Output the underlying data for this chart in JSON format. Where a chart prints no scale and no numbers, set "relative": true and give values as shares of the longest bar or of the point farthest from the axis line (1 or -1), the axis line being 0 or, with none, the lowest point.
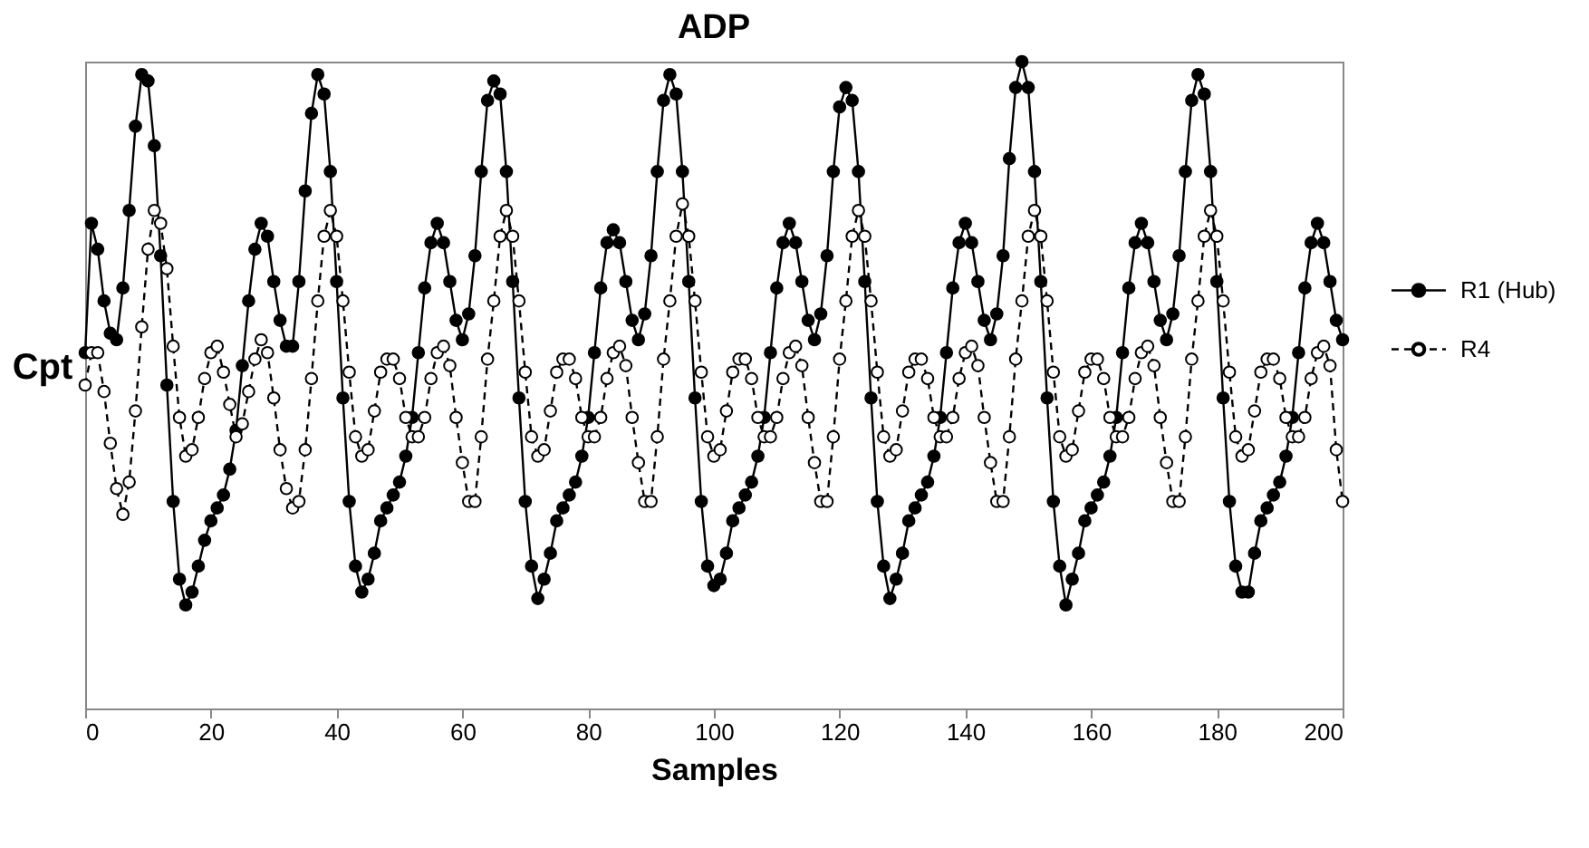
{
  "chart_data": {
    "type": "line",
    "title": "ADP",
    "xlabel": "Samples",
    "ylabel": "Cpt",
    "relative": true,
    "xlim": [
      0,
      200
    ],
    "xticks": [
      0,
      20,
      40,
      60,
      80,
      100,
      120,
      140,
      160,
      180,
      200
    ],
    "grid": false,
    "legend": "right",
    "marker": "circle",
    "x": [
      0,
      1,
      2,
      3,
      4,
      5,
      6,
      7,
      8,
      9,
      10,
      11,
      12,
      13,
      14,
      15,
      16,
      17,
      18,
      19,
      20,
      21,
      22,
      23,
      24,
      25,
      26,
      27,
      28,
      29,
      30,
      31,
      32,
      33,
      34,
      35,
      36,
      37,
      38,
      39,
      40,
      41,
      42,
      43,
      44,
      45,
      46,
      47,
      48,
      49,
      50,
      51,
      52,
      53,
      54,
      55,
      56,
      57,
      58,
      59,
      60,
      61,
      62,
      63,
      64,
      65,
      66,
      67,
      68,
      69,
      70,
      71,
      72,
      73,
      74,
      75,
      76,
      77,
      78,
      79,
      80,
      81,
      82,
      83,
      84,
      85,
      86,
      87,
      88,
      89,
      90,
      91,
      92,
      93,
      94,
      95,
      96,
      97,
      98,
      99,
      100,
      101,
      102,
      103,
      104,
      105,
      106,
      107,
      108,
      109,
      110,
      111,
      112,
      113,
      114,
      115,
      116,
      117,
      118,
      119,
      120,
      121,
      122,
      123,
      124,
      125,
      126,
      127,
      128,
      129,
      130,
      131,
      132,
      133,
      134,
      135,
      136,
      137,
      138,
      139,
      140,
      141,
      142,
      143,
      144,
      145,
      146,
      147,
      148,
      149,
      150,
      151,
      152,
      153,
      154,
      155,
      156,
      157,
      158,
      159,
      160,
      161,
      162,
      163,
      164,
      165,
      166,
      167,
      168,
      169,
      170,
      171,
      172,
      173,
      174,
      175,
      176,
      177,
      178,
      179,
      180,
      181,
      182,
      183,
      184,
      185,
      186,
      187,
      188,
      189,
      190,
      191,
      192,
      193,
      194,
      195,
      196,
      197,
      198,
      199,
      200
    ],
    "series": [
      {
        "name": "R1 (Hub)",
        "color": "#000000",
        "line_style": "solid",
        "values": [
          0.55,
          0.75,
          0.71,
          0.63,
          0.58,
          0.57,
          0.65,
          0.77,
          0.9,
          0.98,
          0.97,
          0.87,
          0.7,
          0.5,
          0.32,
          0.2,
          0.16,
          0.18,
          0.22,
          0.26,
          0.29,
          0.31,
          0.33,
          0.37,
          0.43,
          0.53,
          0.63,
          0.71,
          0.75,
          0.73,
          0.66,
          0.6,
          0.56,
          0.56,
          0.66,
          0.8,
          0.92,
          0.98,
          0.95,
          0.83,
          0.66,
          0.48,
          0.32,
          0.22,
          0.18,
          0.2,
          0.24,
          0.29,
          0.31,
          0.33,
          0.35,
          0.39,
          0.45,
          0.55,
          0.65,
          0.72,
          0.75,
          0.72,
          0.66,
          0.6,
          0.57,
          0.61,
          0.7,
          0.83,
          0.94,
          0.97,
          0.95,
          0.83,
          0.66,
          0.48,
          0.32,
          0.22,
          0.17,
          0.2,
          0.24,
          0.29,
          0.31,
          0.33,
          0.35,
          0.39,
          0.45,
          0.55,
          0.65,
          0.72,
          0.74,
          0.72,
          0.66,
          0.6,
          0.57,
          0.61,
          0.7,
          0.83,
          0.94,
          0.98,
          0.95,
          0.83,
          0.66,
          0.48,
          0.32,
          0.22,
          0.19,
          0.2,
          0.24,
          0.29,
          0.31,
          0.33,
          0.35,
          0.39,
          0.45,
          0.55,
          0.65,
          0.72,
          0.75,
          0.72,
          0.66,
          0.6,
          0.57,
          0.61,
          0.7,
          0.83,
          0.93,
          0.96,
          0.94,
          0.83,
          0.66,
          0.48,
          0.32,
          0.22,
          0.17,
          0.2,
          0.24,
          0.29,
          0.31,
          0.33,
          0.35,
          0.39,
          0.45,
          0.55,
          0.65,
          0.72,
          0.75,
          0.72,
          0.66,
          0.6,
          0.57,
          0.61,
          0.7,
          0.85,
          0.96,
          1.0,
          0.96,
          0.83,
          0.66,
          0.48,
          0.32,
          0.22,
          0.16,
          0.2,
          0.24,
          0.29,
          0.31,
          0.33,
          0.35,
          0.39,
          0.45,
          0.55,
          0.65,
          0.72,
          0.75,
          0.72,
          0.66,
          0.6,
          0.57,
          0.61,
          0.7,
          0.83,
          0.94,
          0.98,
          0.95,
          0.83,
          0.66,
          0.48,
          0.32,
          0.22,
          0.18,
          0.18,
          0.24,
          0.29,
          0.31,
          0.33,
          0.35,
          0.39,
          0.45,
          0.55,
          0.65,
          0.72,
          0.75,
          0.72,
          0.66,
          0.6,
          0.57
        ]
      },
      {
        "name": "R4",
        "color": "#000000",
        "line_style": "dashed",
        "values": [
          0.5,
          0.55,
          0.55,
          0.49,
          0.41,
          0.34,
          0.3,
          0.35,
          0.46,
          0.59,
          0.71,
          0.77,
          0.75,
          0.68,
          0.56,
          0.45,
          0.39,
          0.4,
          0.45,
          0.51,
          0.55,
          0.56,
          0.52,
          0.47,
          0.42,
          0.44,
          0.49,
          0.54,
          0.57,
          0.55,
          0.48,
          0.4,
          0.34,
          0.31,
          0.32,
          0.4,
          0.51,
          0.63,
          0.73,
          0.77,
          0.73,
          0.63,
          0.52,
          0.42,
          0.39,
          0.4,
          0.46,
          0.52,
          0.54,
          0.54,
          0.51,
          0.45,
          0.42,
          0.42,
          0.45,
          0.51,
          0.55,
          0.56,
          0.53,
          0.45,
          0.38,
          0.32,
          0.32,
          0.42,
          0.54,
          0.63,
          0.73,
          0.77,
          0.73,
          0.63,
          0.52,
          0.42,
          0.39,
          0.4,
          0.46,
          0.52,
          0.54,
          0.54,
          0.51,
          0.45,
          0.42,
          0.42,
          0.45,
          0.51,
          0.55,
          0.56,
          0.53,
          0.45,
          0.38,
          0.32,
          0.32,
          0.42,
          0.54,
          0.63,
          0.73,
          0.78,
          0.73,
          0.63,
          0.52,
          0.42,
          0.39,
          0.4,
          0.46,
          0.52,
          0.54,
          0.54,
          0.51,
          0.45,
          0.42,
          0.42,
          0.45,
          0.51,
          0.55,
          0.56,
          0.53,
          0.45,
          0.38,
          0.32,
          0.32,
          0.42,
          0.54,
          0.63,
          0.73,
          0.77,
          0.73,
          0.63,
          0.52,
          0.42,
          0.39,
          0.4,
          0.46,
          0.52,
          0.54,
          0.54,
          0.51,
          0.45,
          0.42,
          0.42,
          0.45,
          0.51,
          0.55,
          0.56,
          0.53,
          0.45,
          0.38,
          0.32,
          0.32,
          0.42,
          0.54,
          0.63,
          0.73,
          0.77,
          0.73,
          0.63,
          0.52,
          0.42,
          0.39,
          0.4,
          0.46,
          0.52,
          0.54,
          0.54,
          0.51,
          0.45,
          0.42,
          0.42,
          0.45,
          0.51,
          0.55,
          0.56,
          0.53,
          0.45,
          0.38,
          0.32,
          0.32,
          0.42,
          0.54,
          0.63,
          0.73,
          0.77,
          0.73,
          0.63,
          0.52,
          0.42,
          0.39,
          0.4,
          0.46,
          0.52,
          0.54,
          0.54,
          0.51,
          0.45,
          0.42,
          0.42,
          0.45,
          0.51,
          0.55,
          0.56,
          0.53,
          0.4,
          0.32
        ]
      }
    ]
  }
}
